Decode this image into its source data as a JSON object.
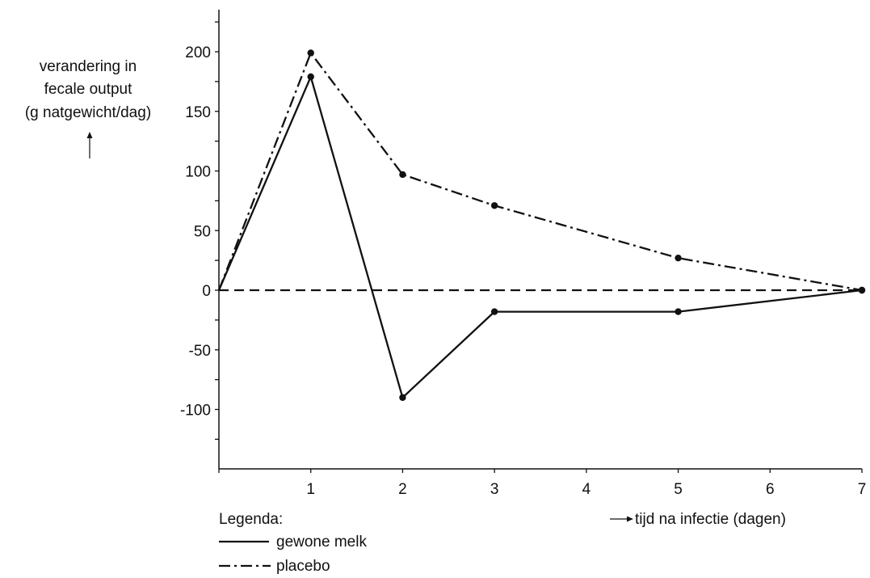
{
  "chart_data": {
    "type": "line",
    "ylabel_lines": [
      "verandering in",
      "fecale output",
      "(g natgewicht/dag)"
    ],
    "xlabel": "tijd na infectie (dagen)",
    "x_ticks": [
      1,
      2,
      3,
      4,
      5,
      6,
      7
    ],
    "y_ticks": [
      -100,
      -50,
      0,
      50,
      100,
      150,
      200
    ],
    "xlim": [
      0,
      7
    ],
    "ylim": [
      -150,
      240
    ],
    "legend_title": "Legenda:",
    "series": [
      {
        "name": "gewone melk",
        "style": "solid",
        "x": [
          0,
          1,
          2,
          3,
          5,
          7
        ],
        "y": [
          0,
          179,
          -90,
          -18,
          -18,
          0
        ]
      },
      {
        "name": "placebo",
        "style": "dashdot",
        "x": [
          0,
          1,
          2,
          3,
          5,
          7
        ],
        "y": [
          0,
          199,
          97,
          71,
          27,
          0
        ]
      }
    ],
    "reference_line": {
      "y": 0,
      "style": "dashed"
    }
  }
}
